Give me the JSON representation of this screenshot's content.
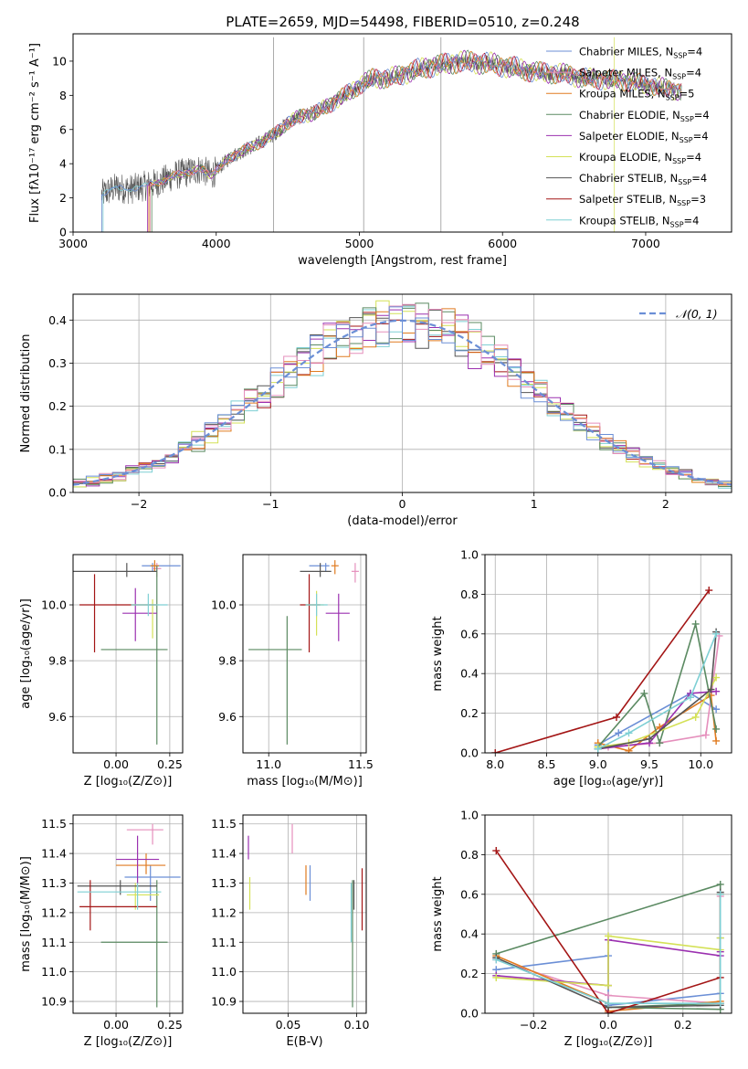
{
  "figure_title": "PLATE=2659, MJD=54498, FIBERID=0510, z=0.248",
  "series_styles": [
    {
      "name": "Chabrier MILES",
      "nssp": "4",
      "color": "#6b8fd6"
    },
    {
      "name": "Salpeter MILES",
      "nssp": "4",
      "color": "#e58fbc"
    },
    {
      "name": "Kroupa MILES",
      "nssp": "5",
      "color": "#e07b20"
    },
    {
      "name": "Chabrier ELODIE",
      "nssp": "4",
      "color": "#5b8a62"
    },
    {
      "name": "Salpeter ELODIE",
      "nssp": "4",
      "color": "#9b30b0"
    },
    {
      "name": "Kroupa ELODIE",
      "nssp": "4",
      "color": "#d4e157"
    },
    {
      "name": "Chabrier STELIB",
      "nssp": "4",
      "color": "#555555"
    },
    {
      "name": "Salpeter STELIB",
      "nssp": "3",
      "color": "#a31515"
    },
    {
      "name": "Kroupa STELIB",
      "nssp": "4",
      "color": "#7ecfd4"
    }
  ],
  "chart_data": [
    {
      "id": "spectrum",
      "type": "line",
      "xlabel": "wavelength [Angstrom, rest frame]",
      "ylabel": "Flux [fλ10⁻¹⁷ erg cm⁻² s⁻¹ A⁻¹]",
      "xlim": [
        3000,
        7600
      ],
      "ylim": [
        0,
        11.6
      ],
      "xticks": [
        3000,
        4000,
        5000,
        6000,
        7000
      ],
      "yticks": [
        0,
        2,
        4,
        6,
        8,
        10
      ],
      "legend": "right",
      "legend_sub": "SSP",
      "continuum": {
        "x": [
          3200,
          3300,
          3400,
          3500,
          3600,
          3700,
          3800,
          3900,
          3960,
          4000,
          4100,
          4200,
          4300,
          4400,
          4500,
          4600,
          4700,
          4800,
          4900,
          5000,
          5100,
          5200,
          5300,
          5400,
          5500,
          5600,
          5700,
          5800,
          5900,
          6000,
          6100,
          6200,
          6300,
          6400,
          6500,
          6600,
          6700,
          6800,
          6900,
          7000,
          7100,
          7200,
          7250
        ],
        "y": [
          2.2,
          2.6,
          2.5,
          2.7,
          2.9,
          3.3,
          3.5,
          3.7,
          3.3,
          3.6,
          4.4,
          4.8,
          5.2,
          5.7,
          6.4,
          6.8,
          7.0,
          7.5,
          8.0,
          8.6,
          9.0,
          9.0,
          9.2,
          9.5,
          9.7,
          9.8,
          10.0,
          9.9,
          9.9,
          9.7,
          9.6,
          9.4,
          9.3,
          9.3,
          9.1,
          9.0,
          8.9,
          8.9,
          8.8,
          8.6,
          8.5,
          8.3,
          8.2
        ]
      },
      "model_starts": [
        3200,
        3540,
        3530,
        3550,
        3520,
        3540,
        3200,
        3530,
        3210
      ]
    },
    {
      "id": "residuals",
      "type": "histogram",
      "xlabel": "(data-model)/error",
      "ylabel": "Normed distribution",
      "xlim": [
        -2.5,
        2.5
      ],
      "ylim": [
        0,
        0.46
      ],
      "xticks": [
        -2,
        -1,
        0,
        1,
        2
      ],
      "xticklabels": [
        "−2",
        "−1",
        "0",
        "1",
        "2"
      ],
      "yticks": [
        0.0,
        0.1,
        0.2,
        0.3,
        0.4
      ],
      "bin_width": 0.1,
      "reference_label": "𝒩(0, 1)",
      "reference_color": "#6b8fd6",
      "legend": "top-right"
    },
    {
      "id": "age_vs_Z",
      "type": "errorbar",
      "xlabel": "Z [log₁₀(Z/Z⊙)]",
      "ylabel": "age  [log₁₀(age/yr)]",
      "xlim": [
        -0.2,
        0.31
      ],
      "ylim": [
        9.47,
        10.18
      ],
      "xticks": [
        0.0,
        0.25
      ],
      "xticklabels": [
        "0.00",
        "0.25"
      ],
      "yticks": [
        9.6,
        9.8,
        10.0
      ],
      "points": [
        {
          "s": 0,
          "x": 0.17,
          "y": 10.14,
          "xe": [
            0.12,
            0.3
          ],
          "ye": [
            10.12,
            10.15
          ]
        },
        {
          "s": 1,
          "x": 0.19,
          "y": 10.13,
          "xe": [
            0.17,
            0.21
          ],
          "ye": [
            10.1,
            10.15
          ]
        },
        {
          "s": 2,
          "x": 0.18,
          "y": 10.14,
          "xe": [
            0.16,
            0.2
          ],
          "ye": [
            10.12,
            10.16
          ]
        },
        {
          "s": 3,
          "x": 0.19,
          "y": 9.84,
          "xe": [
            -0.07,
            0.24
          ],
          "ye": [
            9.5,
            10.14
          ]
        },
        {
          "s": 4,
          "x": 0.09,
          "y": 9.97,
          "xe": [
            0.03,
            0.19
          ],
          "ye": [
            9.87,
            10.06
          ]
        },
        {
          "s": 5,
          "x": 0.17,
          "y": 10.0,
          "xe": [
            0.07,
            0.2
          ],
          "ye": [
            9.88,
            10.02
          ]
        },
        {
          "s": 6,
          "x": 0.05,
          "y": 10.12,
          "xe": [
            -0.2,
            0.19
          ],
          "ye": [
            10.1,
            10.15
          ]
        },
        {
          "s": 7,
          "x": -0.1,
          "y": 10.0,
          "xe": [
            -0.17,
            0.19
          ],
          "ye": [
            9.83,
            10.11
          ]
        },
        {
          "s": 8,
          "x": 0.15,
          "y": 10.0,
          "xe": [
            0.07,
            0.24
          ],
          "ye": [
            9.96,
            10.04
          ]
        }
      ]
    },
    {
      "id": "age_vs_mass",
      "type": "errorbar",
      "xlabel": "mass [log₁₀(M/M⊙)]",
      "ylabel": "",
      "xlim": [
        10.86,
        11.53
      ],
      "ylim": [
        9.47,
        10.18
      ],
      "xticks": [
        11.0,
        11.5
      ],
      "xticklabels": [
        "11.0",
        "11.5"
      ],
      "yticks": [
        9.6,
        9.8,
        10.0
      ],
      "points": [
        {
          "s": 0,
          "x": 11.31,
          "y": 10.14,
          "xe": [
            11.22,
            11.33
          ],
          "ye": [
            10.12,
            10.15
          ]
        },
        {
          "s": 1,
          "x": 11.47,
          "y": 10.12,
          "xe": [
            11.45,
            11.49
          ],
          "ye": [
            10.08,
            10.15
          ]
        },
        {
          "s": 2,
          "x": 11.36,
          "y": 10.14,
          "xe": [
            11.34,
            11.38
          ],
          "ye": [
            10.11,
            10.16
          ]
        },
        {
          "s": 3,
          "x": 11.1,
          "y": 9.84,
          "xe": [
            10.89,
            11.18
          ],
          "ye": [
            9.5,
            9.96
          ]
        },
        {
          "s": 4,
          "x": 11.38,
          "y": 9.97,
          "xe": [
            11.31,
            11.44
          ],
          "ye": [
            9.87,
            10.04
          ]
        },
        {
          "s": 5,
          "x": 11.26,
          "y": 10.0,
          "xe": [
            11.2,
            11.3
          ],
          "ye": [
            9.89,
            10.05
          ]
        },
        {
          "s": 6,
          "x": 11.28,
          "y": 10.12,
          "xe": [
            11.17,
            11.34
          ],
          "ye": [
            10.1,
            10.15
          ]
        },
        {
          "s": 7,
          "x": 11.22,
          "y": 10.0,
          "xe": [
            11.17,
            11.28
          ],
          "ye": [
            9.83,
            10.11
          ]
        },
        {
          "s": 8,
          "x": 11.26,
          "y": 10.0,
          "xe": [
            11.2,
            11.32
          ],
          "ye": [
            9.96,
            10.04
          ]
        }
      ]
    },
    {
      "id": "weight_vs_age",
      "type": "line",
      "xlabel": "age  [log₁₀(age/yr)]",
      "ylabel": "mass weight",
      "xlim": [
        7.9,
        10.3
      ],
      "ylim": [
        0,
        1
      ],
      "xticks": [
        8.0,
        8.5,
        9.0,
        9.5,
        10.0
      ],
      "xticklabels": [
        "8.0",
        "8.5",
        "9.0",
        "9.5",
        "10.0"
      ],
      "yticks": [
        0.0,
        0.2,
        0.4,
        0.6,
        0.8,
        1.0
      ],
      "series": [
        {
          "s": 0,
          "x": [
            9.0,
            9.2,
            9.9,
            10.15
          ],
          "y": [
            0.04,
            0.1,
            0.3,
            0.22
          ]
        },
        {
          "s": 1,
          "x": [
            9.1,
            9.6,
            10.05,
            10.18
          ],
          "y": [
            0.03,
            0.05,
            0.09,
            0.59
          ]
        },
        {
          "s": 2,
          "x": [
            9.0,
            9.3,
            9.6,
            10.1,
            10.15
          ],
          "y": [
            0.05,
            0.01,
            0.13,
            0.29,
            0.06
          ]
        },
        {
          "s": 3,
          "x": [
            9.0,
            9.45,
            9.6,
            9.95,
            10.15
          ],
          "y": [
            0.03,
            0.3,
            0.05,
            0.65,
            0.12
          ]
        },
        {
          "s": 4,
          "x": [
            9.0,
            9.5,
            9.9,
            10.15
          ],
          "y": [
            0.02,
            0.05,
            0.3,
            0.31
          ]
        },
        {
          "s": 5,
          "x": [
            9.0,
            9.3,
            9.95,
            10.15
          ],
          "y": [
            0.03,
            0.05,
            0.18,
            0.38
          ]
        },
        {
          "s": 6,
          "x": [
            9.0,
            9.5,
            10.1,
            10.15
          ],
          "y": [
            0.02,
            0.07,
            0.32,
            0.61
          ]
        },
        {
          "s": 7,
          "x": [
            8.0,
            9.18,
            10.08
          ],
          "y": [
            0.0,
            0.18,
            0.82
          ]
        },
        {
          "s": 8,
          "x": [
            9.0,
            9.3,
            9.9,
            10.15
          ],
          "y": [
            0.02,
            0.1,
            0.28,
            0.6
          ]
        }
      ]
    },
    {
      "id": "mass_vs_Z",
      "type": "errorbar",
      "xlabel": "Z [log₁₀(Z/Z⊙)]",
      "ylabel": "mass [log₁₀(M/M⊙)]",
      "xlim": [
        -0.2,
        0.31
      ],
      "ylim": [
        10.86,
        11.53
      ],
      "xticks": [
        0.0,
        0.25
      ],
      "xticklabels": [
        "0.00",
        "0.25"
      ],
      "yticks": [
        10.9,
        11.0,
        11.1,
        11.2,
        11.3,
        11.4,
        11.5
      ],
      "points": [
        {
          "s": 0,
          "x": 0.16,
          "y": 11.32,
          "xe": [
            0.04,
            0.3
          ],
          "ye": [
            11.24,
            11.36
          ]
        },
        {
          "s": 1,
          "x": 0.17,
          "y": 11.48,
          "xe": [
            0.05,
            0.22
          ],
          "ye": [
            11.43,
            11.5
          ]
        },
        {
          "s": 2,
          "x": 0.14,
          "y": 11.36,
          "xe": [
            0.0,
            0.23
          ],
          "ye": [
            11.33,
            11.4
          ]
        },
        {
          "s": 3,
          "x": 0.19,
          "y": 11.1,
          "xe": [
            -0.07,
            0.24
          ],
          "ye": [
            10.88,
            11.31
          ]
        },
        {
          "s": 4,
          "x": 0.1,
          "y": 11.38,
          "xe": [
            0.0,
            0.2
          ],
          "ye": [
            11.3,
            11.46
          ]
        },
        {
          "s": 5,
          "x": 0.09,
          "y": 11.26,
          "xe": [
            0.05,
            0.2
          ],
          "ye": [
            11.21,
            11.3
          ]
        },
        {
          "s": 6,
          "x": 0.02,
          "y": 11.29,
          "xe": [
            -0.18,
            0.19
          ],
          "ye": [
            11.26,
            11.31
          ]
        },
        {
          "s": 7,
          "x": -0.12,
          "y": 11.22,
          "xe": [
            -0.17,
            0.19
          ],
          "ye": [
            11.14,
            11.31
          ]
        },
        {
          "s": 8,
          "x": 0.1,
          "y": 11.27,
          "xe": [
            -0.18,
            0.21
          ],
          "ye": [
            11.21,
            11.3
          ]
        }
      ]
    },
    {
      "id": "mass_vs_EBV",
      "type": "errorbar",
      "xlabel": "E(B-V)",
      "ylabel": "",
      "xlim": [
        0.017,
        0.107
      ],
      "ylim": [
        10.86,
        11.53
      ],
      "xticks": [
        0.05,
        0.1
      ],
      "xticklabels": [
        "0.05",
        "0.10"
      ],
      "yticks": [
        10.9,
        11.0,
        11.1,
        11.2,
        11.3,
        11.4,
        11.5
      ],
      "points": [
        {
          "s": 0,
          "x": 0.066,
          "y": 11.31,
          "xe": [
            0.066,
            0.066
          ],
          "ye": [
            11.24,
            11.36
          ]
        },
        {
          "s": 1,
          "x": 0.053,
          "y": 11.45,
          "xe": [
            0.053,
            0.053
          ],
          "ye": [
            11.4,
            11.5
          ]
        },
        {
          "s": 2,
          "x": 0.063,
          "y": 11.3,
          "xe": [
            0.063,
            0.063
          ],
          "ye": [
            11.26,
            11.36
          ]
        },
        {
          "s": 3,
          "x": 0.097,
          "y": 11.1,
          "xe": [
            0.097,
            0.097
          ],
          "ye": [
            10.88,
            11.31
          ]
        },
        {
          "s": 4,
          "x": 0.021,
          "y": 11.41,
          "xe": [
            0.021,
            0.021
          ],
          "ye": [
            11.38,
            11.46
          ]
        },
        {
          "s": 5,
          "x": 0.022,
          "y": 11.26,
          "xe": [
            0.022,
            0.022
          ],
          "ye": [
            11.21,
            11.32
          ]
        },
        {
          "s": 6,
          "x": 0.098,
          "y": 11.25,
          "xe": [
            0.098,
            0.098
          ],
          "ye": [
            11.21,
            11.31
          ]
        },
        {
          "s": 7,
          "x": 0.104,
          "y": 11.25,
          "xe": [
            0.104,
            0.104
          ],
          "ye": [
            11.14,
            11.35
          ]
        },
        {
          "s": 8,
          "x": 0.096,
          "y": 11.2,
          "xe": [
            0.096,
            0.096
          ],
          "ye": [
            11.1,
            11.3
          ]
        }
      ]
    },
    {
      "id": "weight_vs_Z",
      "type": "line",
      "xlabel": "Z [log₁₀(Z/Z⊙)]",
      "ylabel": "mass weight",
      "xlim": [
        -0.33,
        0.33
      ],
      "ylim": [
        0,
        1
      ],
      "xticks": [
        -0.2,
        0.0,
        0.2
      ],
      "xticklabels": [
        "−0.2",
        "0.0",
        "0.2"
      ],
      "yticks": [
        0.0,
        0.2,
        0.4,
        0.6,
        0.8,
        1.0
      ],
      "series": [
        {
          "s": 0,
          "x": [
            -0.3,
            0.0,
            0.0,
            0.3,
            0.3
          ],
          "y": [
            0.22,
            0.29,
            0.04,
            0.1,
            0.38
          ]
        },
        {
          "s": 1,
          "x": [
            -0.3,
            0.0,
            0.3,
            0.3
          ],
          "y": [
            0.27,
            0.09,
            0.05,
            0.59
          ]
        },
        {
          "s": 2,
          "x": [
            -0.3,
            0.0,
            0.0,
            0.3,
            0.3
          ],
          "y": [
            0.29,
            0.05,
            0.01,
            0.06,
            0.6
          ]
        },
        {
          "s": 3,
          "x": [
            -0.3,
            0.3,
            0.3,
            0.0,
            0.3
          ],
          "y": [
            0.3,
            0.65,
            0.02,
            0.03,
            0.05
          ]
        },
        {
          "s": 4,
          "x": [
            -0.3,
            0.0,
            0.0,
            0.3,
            0.3
          ],
          "y": [
            0.19,
            0.14,
            0.37,
            0.29,
            0.31
          ]
        },
        {
          "s": 5,
          "x": [
            -0.3,
            0.0,
            0.0,
            0.3,
            0.3
          ],
          "y": [
            0.18,
            0.14,
            0.39,
            0.32,
            0.38
          ]
        },
        {
          "s": 6,
          "x": [
            -0.3,
            0.0,
            0.3,
            0.3
          ],
          "y": [
            0.28,
            0.03,
            0.04,
            0.61
          ]
        },
        {
          "s": 7,
          "x": [
            -0.3,
            0.0,
            0.3
          ],
          "y": [
            0.82,
            0.0,
            0.18
          ]
        },
        {
          "s": 8,
          "x": [
            -0.3,
            0.0,
            0.3,
            0.3
          ],
          "y": [
            0.27,
            0.05,
            0.05,
            0.6
          ]
        }
      ]
    }
  ]
}
